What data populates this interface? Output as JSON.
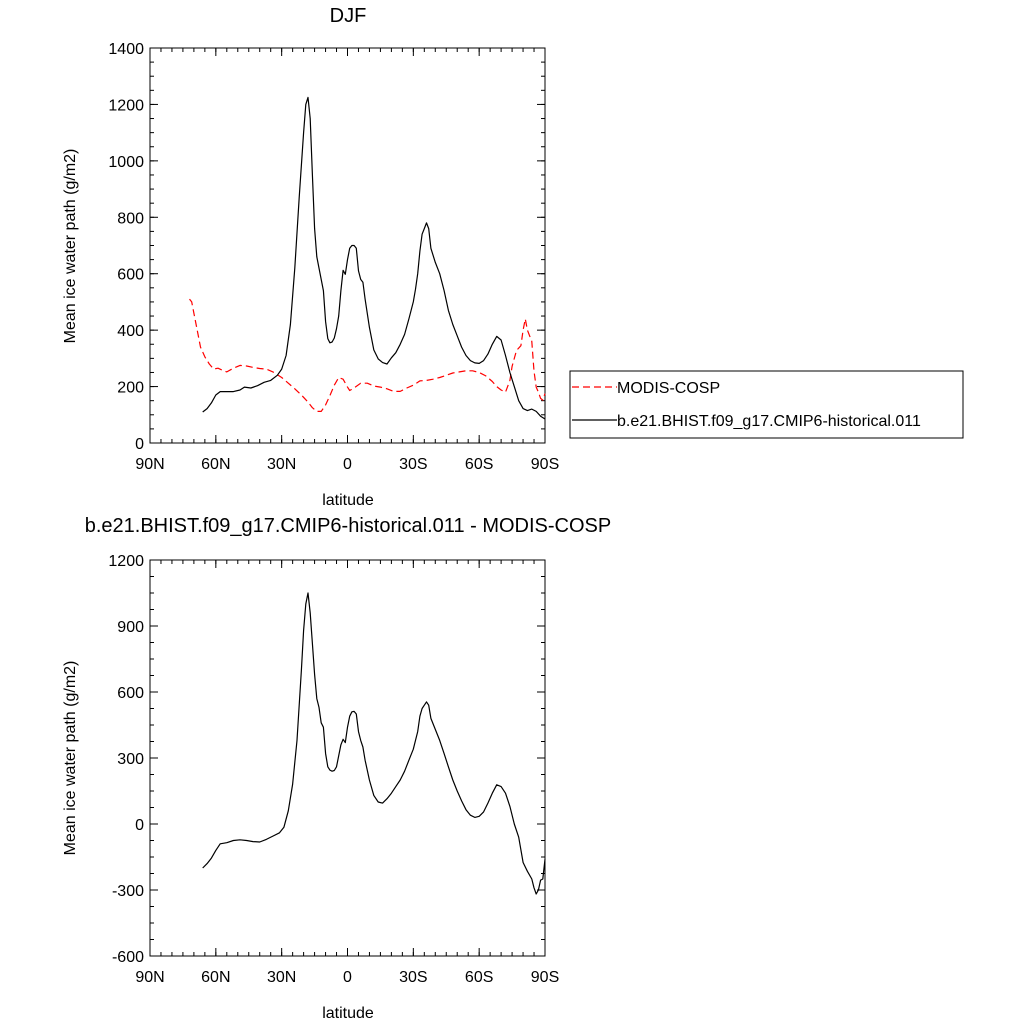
{
  "chart_data": [
    {
      "type": "line",
      "title": "DJF",
      "xlabel": "latitude",
      "ylabel": "Mean ice water path (g/m2)",
      "xlim": [
        90,
        -90
      ],
      "ylim": [
        0,
        1400
      ],
      "x_ticks": [
        90,
        60,
        30,
        0,
        -30,
        -60,
        -90
      ],
      "x_tick_labels": [
        "90N",
        "60N",
        "30N",
        "0",
        "30S",
        "60S",
        "90S"
      ],
      "y_ticks": [
        0,
        200,
        400,
        600,
        800,
        1000,
        1200,
        1400
      ],
      "y_tick_labels": [
        "0",
        "200",
        "400",
        "600",
        "800",
        "1000",
        "1200",
        "1400"
      ],
      "legend_position": "right",
      "series": [
        {
          "name": "MODIS-COSP",
          "color": "#ff0000",
          "dash": "dashed",
          "points": [
            [
              72,
              510
            ],
            [
              71,
              500
            ],
            [
              69,
              420
            ],
            [
              67,
              340
            ],
            [
              65,
              305
            ],
            [
              63,
              280
            ],
            [
              61,
              262
            ],
            [
              59,
              265
            ],
            [
              57,
              258
            ],
            [
              55,
              252
            ],
            [
              52,
              265
            ],
            [
              49,
              275
            ],
            [
              46,
              273
            ],
            [
              43,
              268
            ],
            [
              40,
              264
            ],
            [
              37,
              262
            ],
            [
              34,
              252
            ],
            [
              30,
              232
            ],
            [
              27,
              212
            ],
            [
              24,
              192
            ],
            [
              21,
              170
            ],
            [
              18,
              145
            ],
            [
              16,
              125
            ],
            [
              14,
              112
            ],
            [
              12,
              112
            ],
            [
              10,
              135
            ],
            [
              8,
              168
            ],
            [
              6,
              205
            ],
            [
              4,
              232
            ],
            [
              2,
              226
            ],
            [
              0,
              198
            ],
            [
              -1,
              186
            ],
            [
              -3,
              195
            ],
            [
              -6,
              212
            ],
            [
              -9,
              212
            ],
            [
              -12,
              202
            ],
            [
              -15,
              198
            ],
            [
              -18,
              192
            ],
            [
              -21,
              183
            ],
            [
              -24,
              183
            ],
            [
              -27,
              195
            ],
            [
              -30,
              205
            ],
            [
              -33,
              220
            ],
            [
              -36,
              222
            ],
            [
              -39,
              226
            ],
            [
              -42,
              232
            ],
            [
              -45,
              240
            ],
            [
              -48,
              248
            ],
            [
              -51,
              252
            ],
            [
              -54,
              256
            ],
            [
              -57,
              256
            ],
            [
              -60,
              250
            ],
            [
              -63,
              238
            ],
            [
              -66,
              218
            ],
            [
              -68,
              200
            ],
            [
              -70,
              188
            ],
            [
              -72,
              180
            ],
            [
              -74,
              222
            ],
            [
              -75,
              272
            ],
            [
              -77,
              328
            ],
            [
              -79,
              345
            ],
            [
              -80,
              400
            ],
            [
              -81,
              440
            ],
            [
              -82,
              400
            ],
            [
              -83,
              380
            ],
            [
              -84,
              360
            ],
            [
              -85,
              255
            ],
            [
              -86,
              198
            ],
            [
              -87,
              180
            ],
            [
              -88,
              158
            ],
            [
              -89,
              152
            ],
            [
              -90,
              175
            ]
          ]
        },
        {
          "name": "b.e21.BHIST.f09_g17.CMIP6-historical.011",
          "color": "#000000",
          "dash": "solid",
          "points": [
            [
              66,
              110
            ],
            [
              64,
              122
            ],
            [
              62,
              142
            ],
            [
              60,
              170
            ],
            [
              58,
              182
            ],
            [
              55,
              182
            ],
            [
              52,
              182
            ],
            [
              49,
              188
            ],
            [
              47,
              198
            ],
            [
              44,
              195
            ],
            [
              41,
              203
            ],
            [
              38,
              215
            ],
            [
              35,
              222
            ],
            [
              32,
              240
            ],
            [
              30,
              262
            ],
            [
              28,
              310
            ],
            [
              26,
              420
            ],
            [
              24,
              620
            ],
            [
              22,
              870
            ],
            [
              20,
              1100
            ],
            [
              19,
              1200
            ],
            [
              18,
              1225
            ],
            [
              17,
              1150
            ],
            [
              16,
              950
            ],
            [
              15,
              760
            ],
            [
              14,
              660
            ],
            [
              13,
              620
            ],
            [
              12,
              580
            ],
            [
              11,
              540
            ],
            [
              10,
              430
            ],
            [
              9,
              370
            ],
            [
              8,
              355
            ],
            [
              7,
              358
            ],
            [
              6,
              372
            ],
            [
              5,
              405
            ],
            [
              4,
              450
            ],
            [
              3,
              540
            ],
            [
              2,
              612
            ],
            [
              1,
              598
            ],
            [
              0,
              650
            ],
            [
              -1,
              690
            ],
            [
              -2,
              700
            ],
            [
              -3,
              700
            ],
            [
              -4,
              690
            ],
            [
              -5,
              610
            ],
            [
              -6,
              580
            ],
            [
              -7,
              570
            ],
            [
              -8,
              510
            ],
            [
              -10,
              410
            ],
            [
              -12,
              330
            ],
            [
              -14,
              298
            ],
            [
              -16,
              285
            ],
            [
              -18,
              280
            ],
            [
              -20,
              302
            ],
            [
              -22,
              320
            ],
            [
              -24,
              350
            ],
            [
              -26,
              385
            ],
            [
              -28,
              440
            ],
            [
              -30,
              500
            ],
            [
              -31,
              545
            ],
            [
              -32,
              600
            ],
            [
              -33,
              680
            ],
            [
              -34,
              740
            ],
            [
              -35,
              760
            ],
            [
              -36,
              780
            ],
            [
              -37,
              760
            ],
            [
              -38,
              690
            ],
            [
              -40,
              640
            ],
            [
              -42,
              600
            ],
            [
              -44,
              540
            ],
            [
              -46,
              470
            ],
            [
              -48,
              420
            ],
            [
              -50,
              380
            ],
            [
              -52,
              340
            ],
            [
              -54,
              310
            ],
            [
              -56,
              292
            ],
            [
              -58,
              284
            ],
            [
              -60,
              282
            ],
            [
              -62,
              292
            ],
            [
              -64,
              315
            ],
            [
              -66,
              350
            ],
            [
              -68,
              378
            ],
            [
              -70,
              365
            ],
            [
              -72,
              310
            ],
            [
              -74,
              250
            ],
            [
              -76,
              200
            ],
            [
              -78,
              150
            ],
            [
              -80,
              122
            ],
            [
              -82,
              115
            ],
            [
              -84,
              120
            ],
            [
              -86,
              112
            ],
            [
              -88,
              95
            ],
            [
              -90,
              85
            ]
          ]
        }
      ]
    },
    {
      "type": "line",
      "title": "b.e21.BHIST.f09_g17.CMIP6-historical.011 - MODIS-COSP",
      "xlabel": "latitude",
      "ylabel": "Mean ice water path (g/m2)",
      "xlim": [
        90,
        -90
      ],
      "ylim": [
        -600,
        1200
      ],
      "x_ticks": [
        90,
        60,
        30,
        0,
        -30,
        -60,
        -90
      ],
      "x_tick_labels": [
        "90N",
        "60N",
        "30N",
        "0",
        "30S",
        "60S",
        "90S"
      ],
      "y_ticks": [
        -600,
        -300,
        0,
        300,
        600,
        900,
        1200
      ],
      "y_tick_labels": [
        "-600",
        "-300",
        "0",
        "300",
        "600",
        "900",
        "1200"
      ],
      "series": [
        {
          "color": "#000000",
          "dash": "solid",
          "points": [
            [
              66,
              -200
            ],
            [
              64,
              -180
            ],
            [
              62,
              -155
            ],
            [
              60,
              -120
            ],
            [
              58,
              -90
            ],
            [
              55,
              -85
            ],
            [
              52,
              -75
            ],
            [
              49,
              -72
            ],
            [
              46,
              -75
            ],
            [
              43,
              -80
            ],
            [
              40,
              -82
            ],
            [
              37,
              -70
            ],
            [
              34,
              -55
            ],
            [
              31,
              -40
            ],
            [
              29,
              -15
            ],
            [
              27,
              60
            ],
            [
              25,
              180
            ],
            [
              23,
              380
            ],
            [
              21,
              700
            ],
            [
              20,
              880
            ],
            [
              19,
              1000
            ],
            [
              18,
              1050
            ],
            [
              17,
              960
            ],
            [
              16,
              820
            ],
            [
              15,
              680
            ],
            [
              14,
              570
            ],
            [
              13,
              530
            ],
            [
              12,
              460
            ],
            [
              11,
              440
            ],
            [
              10,
              320
            ],
            [
              9,
              260
            ],
            [
              8,
              245
            ],
            [
              7,
              240
            ],
            [
              6,
              243
            ],
            [
              5,
              260
            ],
            [
              4,
              310
            ],
            [
              3,
              360
            ],
            [
              2,
              385
            ],
            [
              1,
              370
            ],
            [
              0,
              440
            ],
            [
              -1,
              490
            ],
            [
              -2,
              510
            ],
            [
              -3,
              512
            ],
            [
              -4,
              500
            ],
            [
              -5,
              420
            ],
            [
              -6,
              380
            ],
            [
              -7,
              350
            ],
            [
              -8,
              290
            ],
            [
              -10,
              200
            ],
            [
              -12,
              130
            ],
            [
              -14,
              100
            ],
            [
              -16,
              95
            ],
            [
              -18,
              115
            ],
            [
              -20,
              140
            ],
            [
              -22,
              170
            ],
            [
              -24,
              200
            ],
            [
              -26,
              240
            ],
            [
              -28,
              290
            ],
            [
              -30,
              340
            ],
            [
              -31,
              380
            ],
            [
              -32,
              420
            ],
            [
              -33,
              490
            ],
            [
              -34,
              525
            ],
            [
              -35,
              540
            ],
            [
              -36,
              555
            ],
            [
              -37,
              540
            ],
            [
              -38,
              480
            ],
            [
              -40,
              430
            ],
            [
              -42,
              380
            ],
            [
              -44,
              320
            ],
            [
              -46,
              260
            ],
            [
              -48,
              200
            ],
            [
              -50,
              150
            ],
            [
              -52,
              105
            ],
            [
              -54,
              65
            ],
            [
              -56,
              40
            ],
            [
              -58,
              30
            ],
            [
              -60,
              35
            ],
            [
              -62,
              55
            ],
            [
              -64,
              95
            ],
            [
              -66,
              140
            ],
            [
              -68,
              178
            ],
            [
              -70,
              170
            ],
            [
              -72,
              140
            ],
            [
              -74,
              80
            ],
            [
              -76,
              0
            ],
            [
              -78,
              -60
            ],
            [
              -80,
              -175
            ],
            [
              -82,
              -215
            ],
            [
              -84,
              -250
            ],
            [
              -85,
              -290
            ],
            [
              -86,
              -318
            ],
            [
              -87,
              -300
            ],
            [
              -88,
              -255
            ],
            [
              -89,
              -250
            ],
            [
              -90,
              -160
            ]
          ]
        }
      ]
    }
  ]
}
